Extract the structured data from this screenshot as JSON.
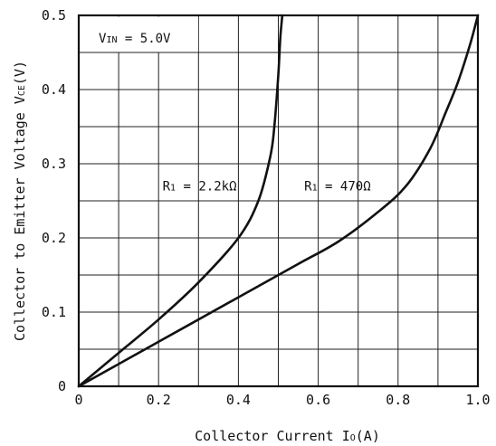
{
  "chart_data": {
    "type": "line",
    "xlabel": "Collector Current I",
    "xlabel_sub": "O",
    "xlabel_unit": "(A)",
    "ylabel": "Collector to Emitter Voltage V",
    "ylabel_sub": "CE",
    "ylabel_unit": "(V)",
    "xlim": [
      0,
      1.0
    ],
    "ylim": [
      0,
      0.5
    ],
    "x_ticks": [
      0,
      0.2,
      0.4,
      0.6,
      0.8,
      1.0
    ],
    "x_tick_labels": [
      "0",
      "0.2",
      "0.4",
      "0.6",
      "0.8",
      "1.0"
    ],
    "y_ticks": [
      0,
      0.1,
      0.2,
      0.3,
      0.4,
      0.5
    ],
    "y_tick_labels": [
      "0",
      "0.1",
      "0.2",
      "0.3",
      "0.4",
      "0.5"
    ],
    "grid": true,
    "condition": {
      "prefix": "V",
      "sub": "IN",
      "text": " = 5.0V"
    },
    "series": [
      {
        "name": "R1 = 2.2kΩ",
        "label_prefix": "R",
        "label_sub": "1",
        "label_text": " = 2.2kΩ",
        "x": [
          0,
          0.1,
          0.2,
          0.3,
          0.4,
          0.45,
          0.48,
          0.49,
          0.5,
          0.505,
          0.51
        ],
        "y": [
          0,
          0.045,
          0.09,
          0.14,
          0.2,
          0.25,
          0.31,
          0.35,
          0.42,
          0.47,
          0.5
        ]
      },
      {
        "name": "R1 = 470Ω",
        "label_prefix": "R",
        "label_sub": "1",
        "label_text": " = 470Ω",
        "x": [
          0,
          0.2,
          0.4,
          0.55,
          0.65,
          0.75,
          0.82,
          0.88,
          0.92,
          0.95,
          0.98,
          1.0
        ],
        "y": [
          0,
          0.06,
          0.12,
          0.165,
          0.195,
          0.235,
          0.27,
          0.32,
          0.37,
          0.41,
          0.46,
          0.5
        ]
      }
    ]
  }
}
